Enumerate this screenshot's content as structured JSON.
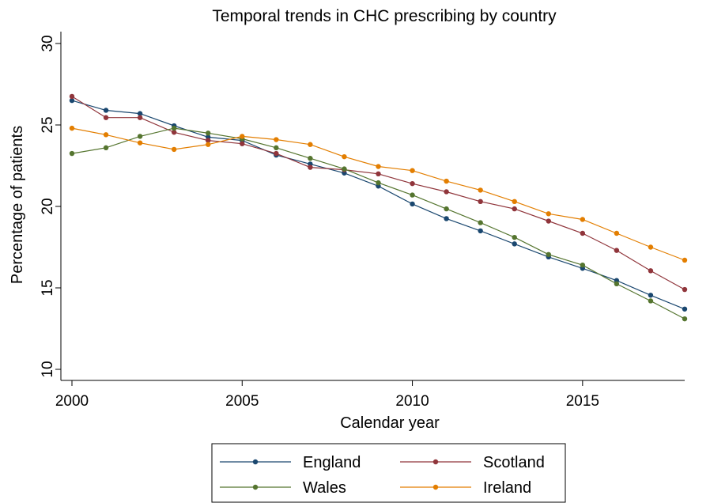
{
  "chart_data": {
    "type": "line",
    "title": "Temporal trends in CHC prescribing by country",
    "xlabel": "Calendar year",
    "ylabel": "Percentage of patients",
    "xlim": [
      2000,
      2018
    ],
    "ylim": [
      10,
      30
    ],
    "x_ticks": [
      2000,
      2005,
      2010,
      2015
    ],
    "y_ticks": [
      10,
      15,
      20,
      25,
      30
    ],
    "grid": false,
    "legend_position": "bottom",
    "x": [
      2000,
      2001,
      2002,
      2003,
      2004,
      2005,
      2006,
      2007,
      2008,
      2009,
      2010,
      2011,
      2012,
      2013,
      2014,
      2015,
      2016,
      2017,
      2018
    ],
    "series": [
      {
        "name": "England",
        "color": "#1a476f",
        "values": [
          26.5,
          25.9,
          25.7,
          24.95,
          24.25,
          24.05,
          23.15,
          22.6,
          22.05,
          21.25,
          20.15,
          19.25,
          18.5,
          17.7,
          16.9,
          16.2,
          15.45,
          14.55,
          13.7
        ]
      },
      {
        "name": "Scotland",
        "color": "#90353b",
        "values": [
          26.75,
          25.45,
          25.45,
          24.55,
          24.05,
          23.85,
          23.25,
          22.4,
          22.25,
          22.0,
          21.4,
          20.9,
          20.3,
          19.85,
          19.1,
          18.35,
          17.3,
          16.05,
          14.9
        ]
      },
      {
        "name": "Wales",
        "color": "#55752f",
        "values": [
          23.25,
          23.6,
          24.3,
          24.8,
          24.5,
          24.15,
          23.6,
          22.95,
          22.3,
          21.45,
          20.7,
          19.85,
          19.0,
          18.1,
          17.05,
          16.4,
          15.25,
          14.2,
          13.1
        ]
      },
      {
        "name": "Ireland",
        "color": "#e37e00",
        "values": [
          24.8,
          24.4,
          23.9,
          23.5,
          23.8,
          24.3,
          24.1,
          23.8,
          23.05,
          22.45,
          22.2,
          21.55,
          21.0,
          20.3,
          19.55,
          19.2,
          18.35,
          17.5,
          16.7
        ]
      }
    ]
  }
}
